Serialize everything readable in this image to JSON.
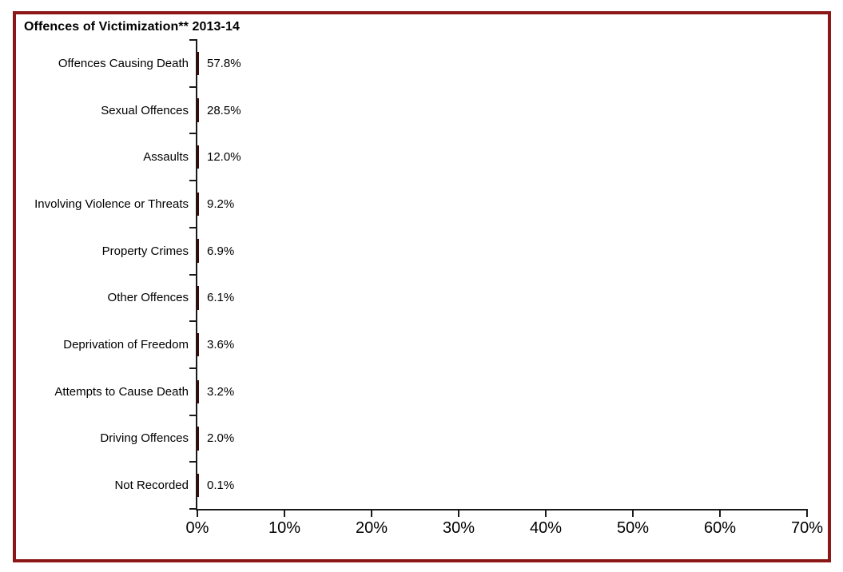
{
  "window": {
    "background_color": "#ffffff",
    "frame_border_color": "#8b1717"
  },
  "chart": {
    "title": "Offences of Victimization** 2013-14"
  },
  "chart_data": {
    "type": "bar",
    "orientation": "horizontal",
    "title": "Offences of Victimization** 2013-14",
    "xlabel": "",
    "ylabel": "",
    "xlim": [
      0,
      70
    ],
    "x_tick_labels": [
      "0%",
      "10%",
      "20%",
      "30%",
      "40%",
      "50%",
      "60%",
      "70%"
    ],
    "grid": false,
    "legend": false,
    "bar_color": "#8b0505",
    "bar_border_color": "#420606",
    "axis_color": "#1a1a1a",
    "categories": [
      "Offences Causing Death",
      "Sexual Offences",
      "Assaults",
      "Involving Violence or Threats",
      "Property Crimes",
      "Other Offences",
      "Deprivation of Freedom",
      "Attempts to Cause Death",
      "Driving Offences",
      "Not Recorded"
    ],
    "values": [
      57.8,
      28.5,
      12.0,
      9.2,
      6.9,
      6.1,
      3.6,
      3.2,
      2.0,
      0.1
    ],
    "value_labels": [
      "57.8%",
      "28.5%",
      "12.0%",
      "9.2%",
      "6.9%",
      "6.1%",
      "3.6%",
      "3.2%",
      "2.0%",
      "0.1%"
    ]
  }
}
